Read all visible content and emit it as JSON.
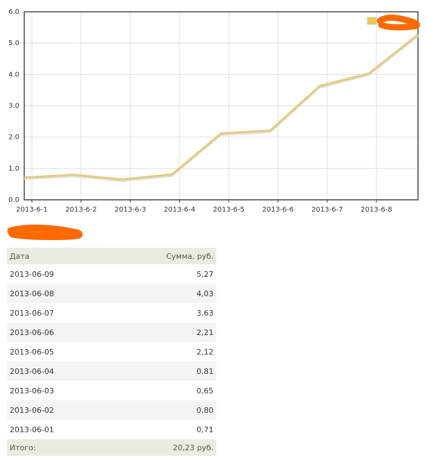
{
  "chart_data": {
    "type": "line",
    "categories": [
      "2013-6-1",
      "2013-6-2",
      "2013-6-3",
      "2013-6-4",
      "2013-6-5",
      "2013-6-6",
      "2013-6-7",
      "2013-6-8",
      null
    ],
    "values": [
      0.71,
      0.8,
      0.65,
      0.81,
      2.12,
      2.21,
      3.63,
      4.03,
      5.27
    ],
    "color": "#e2cc80",
    "legend_color": "#e8c84a",
    "ylim": [
      0,
      6
    ],
    "yticks": [
      {
        "value": 0,
        "label": "0.0"
      },
      {
        "value": 1,
        "label": "1.0"
      },
      {
        "value": 2,
        "label": "2.0"
      },
      {
        "value": 3,
        "label": "3.0"
      },
      {
        "value": 4,
        "label": "4.0"
      },
      {
        "value": 5,
        "label": "5.0"
      },
      {
        "value": 6,
        "label": "6.0"
      }
    ],
    "grid": true
  },
  "table": {
    "header": [
      "Дата",
      "Сумма, руб."
    ],
    "rows": [
      [
        "2013-06-09",
        "5,27"
      ],
      [
        "2013-06-08",
        "4,03"
      ],
      [
        "2013-06-07",
        "3,63"
      ],
      [
        "2013-06-06",
        "2,21"
      ],
      [
        "2013-06-05",
        "2,12"
      ],
      [
        "2013-06-04",
        "0,81"
      ],
      [
        "2013-06-03",
        "0,65"
      ],
      [
        "2013-06-02",
        "0,80"
      ],
      [
        "2013-06-01",
        "0,71"
      ]
    ],
    "footer": [
      "Итого:",
      "20,23 руб."
    ]
  }
}
